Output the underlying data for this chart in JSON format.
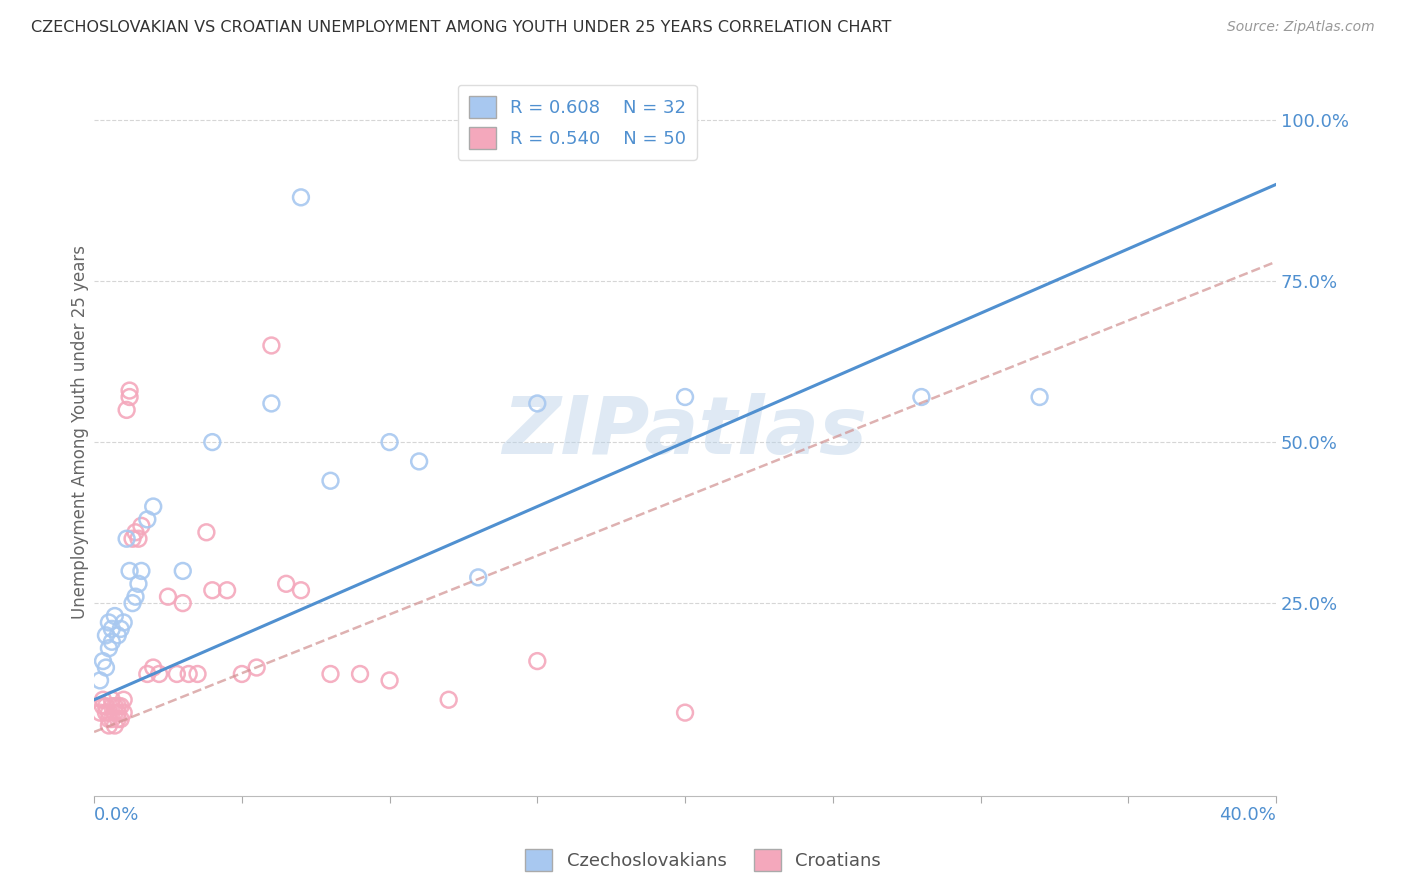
{
  "title": "CZECHOSLOVAKIAN VS CROATIAN UNEMPLOYMENT AMONG YOUTH UNDER 25 YEARS CORRELATION CHART",
  "source": "Source: ZipAtlas.com",
  "ylabel": "Unemployment Among Youth under 25 years",
  "watermark": "ZIPatlas",
  "legend_blue_r": "R = 0.608",
  "legend_blue_n": "N = 32",
  "legend_pink_r": "R = 0.540",
  "legend_pink_n": "N = 50",
  "blue_scatter_color": "#A8C8F0",
  "pink_scatter_color": "#F4A8BC",
  "blue_line_color": "#5090D0",
  "pink_line_color": "#D09090",
  "background_color": "#FFFFFF",
  "xlim": [
    0.0,
    0.4
  ],
  "ylim": [
    -0.05,
    1.08
  ],
  "blue_line_x0": 0.0,
  "blue_line_y0": 0.1,
  "blue_line_x1": 0.4,
  "blue_line_y1": 0.9,
  "pink_line_x0": 0.0,
  "pink_line_y0": 0.05,
  "pink_line_x1": 0.4,
  "pink_line_y1": 0.78,
  "czecho_x": [
    0.002,
    0.003,
    0.004,
    0.004,
    0.005,
    0.005,
    0.006,
    0.006,
    0.007,
    0.008,
    0.009,
    0.01,
    0.011,
    0.012,
    0.013,
    0.014,
    0.015,
    0.016,
    0.018,
    0.02,
    0.03,
    0.04,
    0.06,
    0.07,
    0.08,
    0.1,
    0.11,
    0.13,
    0.15,
    0.2,
    0.28,
    0.32
  ],
  "czecho_y": [
    0.13,
    0.16,
    0.15,
    0.2,
    0.18,
    0.22,
    0.19,
    0.21,
    0.23,
    0.2,
    0.21,
    0.22,
    0.35,
    0.3,
    0.25,
    0.26,
    0.28,
    0.3,
    0.38,
    0.4,
    0.3,
    0.5,
    0.56,
    0.88,
    0.44,
    0.5,
    0.47,
    0.29,
    0.56,
    0.57,
    0.57,
    0.57
  ],
  "croatia_x": [
    0.002,
    0.003,
    0.003,
    0.004,
    0.004,
    0.005,
    0.005,
    0.005,
    0.006,
    0.006,
    0.006,
    0.007,
    0.007,
    0.007,
    0.008,
    0.008,
    0.008,
    0.009,
    0.009,
    0.01,
    0.01,
    0.011,
    0.012,
    0.012,
    0.013,
    0.014,
    0.015,
    0.016,
    0.018,
    0.02,
    0.022,
    0.025,
    0.028,
    0.03,
    0.032,
    0.035,
    0.038,
    0.04,
    0.045,
    0.05,
    0.055,
    0.06,
    0.065,
    0.07,
    0.08,
    0.09,
    0.1,
    0.12,
    0.15,
    0.2
  ],
  "croatia_y": [
    0.08,
    0.09,
    0.1,
    0.08,
    0.09,
    0.06,
    0.07,
    0.08,
    0.07,
    0.09,
    0.1,
    0.06,
    0.08,
    0.09,
    0.07,
    0.08,
    0.09,
    0.07,
    0.09,
    0.08,
    0.1,
    0.55,
    0.57,
    0.58,
    0.35,
    0.36,
    0.35,
    0.37,
    0.14,
    0.15,
    0.14,
    0.26,
    0.14,
    0.25,
    0.14,
    0.14,
    0.36,
    0.27,
    0.27,
    0.14,
    0.15,
    0.65,
    0.28,
    0.27,
    0.14,
    0.14,
    0.13,
    0.1,
    0.16,
    0.08
  ]
}
